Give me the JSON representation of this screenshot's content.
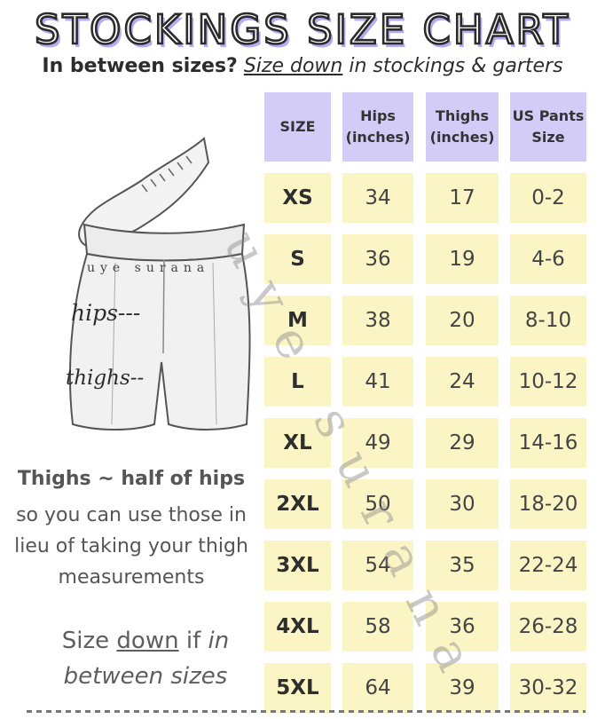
{
  "title": "STOCKINGS SIZE CHART",
  "subtitle": {
    "bold": "In between sizes?",
    "underlined": "Size down",
    "rest": "in stockings & garters"
  },
  "table": {
    "headers": [
      "SIZE",
      "Hips (inches)",
      "Thighs (inches)",
      "US Pants Size"
    ],
    "rows": [
      {
        "size": "XS",
        "hips": "34",
        "thighs": "17",
        "pants": "0-2"
      },
      {
        "size": "S",
        "hips": "36",
        "thighs": "19",
        "pants": "4-6"
      },
      {
        "size": "M",
        "hips": "38",
        "thighs": "20",
        "pants": "8-10"
      },
      {
        "size": "L",
        "hips": "41",
        "thighs": "24",
        "pants": "10-12"
      },
      {
        "size": "XL",
        "hips": "49",
        "thighs": "29",
        "pants": "14-16"
      },
      {
        "size": "2XL",
        "hips": "50",
        "thighs": "30",
        "pants": "18-20"
      },
      {
        "size": "3XL",
        "hips": "54",
        "thighs": "35",
        "pants": "22-24"
      },
      {
        "size": "4XL",
        "hips": "58",
        "thighs": "36",
        "pants": "26-28"
      },
      {
        "size": "5XL",
        "hips": "64",
        "thighs": "39",
        "pants": "30-32"
      }
    ]
  },
  "illustration": {
    "brand": "uye surana",
    "hips_label": "hips---",
    "thighs_label": "thighs--"
  },
  "note": {
    "bold": "Thighs ~ half of hips",
    "text": "so you can use those in lieu of taking your thigh measurements"
  },
  "size_down": {
    "prefix": "Size",
    "underlined": "down",
    "middle": "if",
    "italic1": "in",
    "italic2": "between sizes"
  },
  "watermark": "uye surana",
  "colors": {
    "header_bg": "#d2ccf6",
    "cell_bg": "#fbf5c6",
    "title_shadow": "#b6acf1"
  }
}
